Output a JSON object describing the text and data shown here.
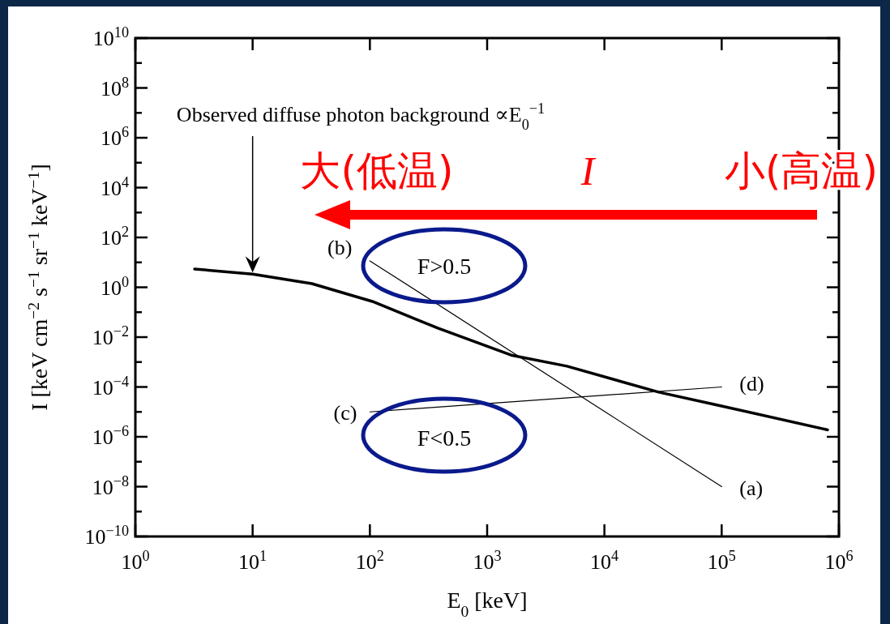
{
  "chart_data": {
    "type": "line",
    "log": "xy",
    "xlabel": "E$_{0}$ [keV]",
    "ylabel": "I [keV cm$^{−2}$ s$^{−1}$ sr$^{−1}$ keV$^{−1}$]",
    "xlim": [
      1,
      1000000
    ],
    "ylim": [
      1e-10,
      10000000000.0
    ],
    "xticks": [
      {
        "value": 1,
        "label": "10$^{0}$"
      },
      {
        "value": 10,
        "label": "10$^{1}$"
      },
      {
        "value": 100,
        "label": "10$^{2}$"
      },
      {
        "value": 1000,
        "label": "10$^{3}$"
      },
      {
        "value": 10000,
        "label": "10$^{4}$"
      },
      {
        "value": 100000,
        "label": "10$^{5}$"
      },
      {
        "value": 1000000,
        "label": "10$^{6}$"
      }
    ],
    "yticks": [
      {
        "value": 1e-10,
        "label": "10$^{−10}$"
      },
      {
        "value": 1e-09,
        "label": null
      },
      {
        "value": 1e-08,
        "label": "10$^{−8}$"
      },
      {
        "value": 1e-07,
        "label": null
      },
      {
        "value": 1e-06,
        "label": "10$^{−6}$"
      },
      {
        "value": 1e-05,
        "label": null
      },
      {
        "value": 0.0001,
        "label": "10$^{−4}$"
      },
      {
        "value": 0.001,
        "label": null
      },
      {
        "value": 0.01,
        "label": "10$^{−2}$"
      },
      {
        "value": 0.1,
        "label": null
      },
      {
        "value": 1,
        "label": "10$^{0}$"
      },
      {
        "value": 10,
        "label": null
      },
      {
        "value": 100,
        "label": "10$^{2}$"
      },
      {
        "value": 1000,
        "label": null
      },
      {
        "value": 10000,
        "label": "10$^{4}$"
      },
      {
        "value": 100000,
        "label": null
      },
      {
        "value": 1000000,
        "label": "10$^{6}$"
      },
      {
        "value": 10000000.0,
        "label": null
      },
      {
        "value": 100000000.0,
        "label": "10$^{8}$"
      },
      {
        "value": 1000000000.0,
        "label": null
      },
      {
        "value": 10000000000.0,
        "label": "10$^{10}$"
      }
    ],
    "series": [
      {
        "color": "#000000",
        "x": [
          3.2,
          10,
          32,
          105,
          380,
          1600,
          4800,
          29000,
          91000,
          800000
        ],
        "values": [
          5.4,
          3.4,
          1.4,
          0.27,
          0.023,
          0.0019,
          0.00068,
          6.2e-05,
          1.9e-05,
          1.9e-06
        ]
      },
      {
        "color": "#000000",
        "x": [
          100,
          100000
        ],
        "values": [
          11.5,
          1e-08
        ]
      },
      {
        "color": "#000000",
        "x": [
          100,
          100000
        ],
        "values": [
          1e-05,
          0.0001
        ]
      }
    ],
    "annotations": [
      "Observed diffuse photon background ∝E$_{0}$$^{−1}$",
      "(a)",
      "(b)",
      "(c)",
      "(d)",
      "F>0.5",
      "F<0.5",
      "大(低温)",
      "I",
      "小(高温)"
    ]
  }
}
